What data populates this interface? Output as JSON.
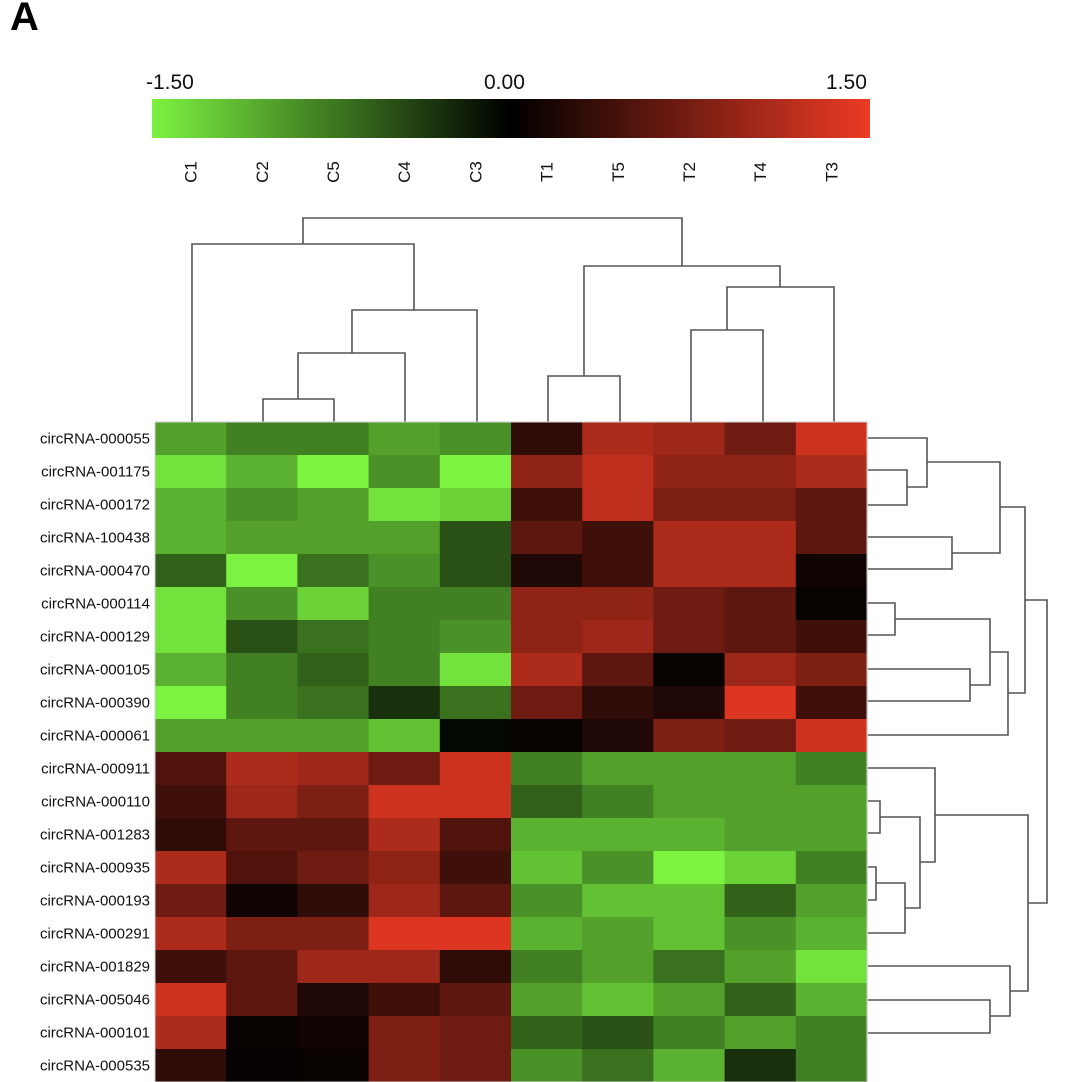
{
  "panel_label": "A",
  "colors": {
    "low": "#7cf241",
    "mid": "#000000",
    "high": "#ec3a24",
    "label_red": "#d94040",
    "label_green": "#66cc33"
  },
  "chart_data": {
    "type": "heatmap",
    "title": "",
    "colorbar": {
      "min": -1.5,
      "max": 1.5,
      "tick_labels": [
        "-1.50",
        "0.00",
        "1.50"
      ]
    },
    "columns": [
      "C1",
      "C2",
      "C5",
      "C4",
      "C3",
      "T1",
      "T5",
      "T2",
      "T4",
      "T3"
    ],
    "rows": [
      {
        "label": "circRNA-000055",
        "highlight": "none"
      },
      {
        "label": "circRNA-001175",
        "highlight": "red"
      },
      {
        "label": "circRNA-000172",
        "highlight": "none"
      },
      {
        "label": "circRNA-100438",
        "highlight": "red"
      },
      {
        "label": "circRNA-000470",
        "highlight": "none"
      },
      {
        "label": "circRNA-000114",
        "highlight": "none"
      },
      {
        "label": "circRNA-000129",
        "highlight": "none"
      },
      {
        "label": "circRNA-000105",
        "highlight": "none"
      },
      {
        "label": "circRNA-000390",
        "highlight": "none"
      },
      {
        "label": "circRNA-000061",
        "highlight": "none"
      },
      {
        "label": "circRNA-000911",
        "highlight": "green"
      },
      {
        "label": "circRNA-000110",
        "highlight": "none"
      },
      {
        "label": "circRNA-001283",
        "highlight": "green"
      },
      {
        "label": "circRNA-000935",
        "highlight": "none"
      },
      {
        "label": "circRNA-000193",
        "highlight": "none"
      },
      {
        "label": "circRNA-000291",
        "highlight": "none"
      },
      {
        "label": "circRNA-001829",
        "highlight": "none"
      },
      {
        "label": "circRNA-005046",
        "highlight": "none"
      },
      {
        "label": "circRNA-000101",
        "highlight": "none"
      },
      {
        "label": "circRNA-000535",
        "highlight": "none"
      }
    ],
    "values": [
      [
        -1.0,
        -0.8,
        -0.8,
        -1.0,
        -0.9,
        0.3,
        1.1,
        1.0,
        0.7,
        1.3
      ],
      [
        -1.4,
        -1.1,
        -1.5,
        -0.9,
        -1.5,
        0.9,
        1.2,
        0.9,
        0.9,
        1.1
      ],
      [
        -1.1,
        -0.9,
        -1.0,
        -1.4,
        -1.3,
        0.4,
        1.2,
        0.8,
        0.8,
        0.6
      ],
      [
        -1.1,
        -1.0,
        -1.0,
        -1.0,
        -0.5,
        0.6,
        0.4,
        1.1,
        1.1,
        0.6
      ],
      [
        -0.6,
        -1.5,
        -0.7,
        -0.9,
        -0.5,
        0.2,
        0.4,
        1.1,
        1.1,
        0.1
      ],
      [
        -1.4,
        -0.9,
        -1.3,
        -0.8,
        -0.8,
        0.9,
        0.9,
        0.7,
        0.6,
        0.05
      ],
      [
        -1.4,
        -0.5,
        -0.7,
        -0.8,
        -0.9,
        0.9,
        1.0,
        0.7,
        0.6,
        0.4
      ],
      [
        -1.1,
        -0.8,
        -0.6,
        -0.8,
        -1.4,
        1.1,
        0.6,
        0.05,
        1.0,
        0.8
      ],
      [
        -1.5,
        -0.8,
        -0.7,
        -0.3,
        -0.7,
        0.7,
        0.3,
        0.2,
        1.4,
        0.4
      ],
      [
        -1.0,
        -1.0,
        -1.0,
        -1.2,
        -0.05,
        0.05,
        0.2,
        0.8,
        0.7,
        1.3
      ],
      [
        0.5,
        1.1,
        1.0,
        0.7,
        1.3,
        -0.8,
        -1.0,
        -1.0,
        -1.0,
        -0.8
      ],
      [
        0.4,
        1.0,
        0.8,
        1.3,
        1.3,
        -0.6,
        -0.8,
        -1.0,
        -1.0,
        -1.0
      ],
      [
        0.3,
        0.6,
        0.6,
        1.1,
        0.5,
        -1.1,
        -1.1,
        -1.1,
        -1.0,
        -1.0
      ],
      [
        1.1,
        0.5,
        0.7,
        0.9,
        0.4,
        -1.2,
        -0.9,
        -1.5,
        -1.3,
        -0.8
      ],
      [
        0.7,
        0.1,
        0.3,
        1.0,
        0.6,
        -0.9,
        -1.2,
        -1.2,
        -0.6,
        -1.0
      ],
      [
        1.1,
        0.8,
        0.8,
        1.4,
        1.4,
        -1.1,
        -1.0,
        -1.2,
        -0.9,
        -1.1
      ],
      [
        0.4,
        0.6,
        1.0,
        1.0,
        0.3,
        -0.8,
        -1.0,
        -0.7,
        -1.0,
        -1.4
      ],
      [
        1.3,
        0.6,
        0.2,
        0.4,
        0.6,
        -1.0,
        -1.2,
        -1.0,
        -0.6,
        -1.1
      ],
      [
        1.1,
        0.05,
        0.1,
        0.8,
        0.7,
        -0.6,
        -0.5,
        -0.8,
        -1.0,
        -0.8
      ],
      [
        0.3,
        0.03,
        0.05,
        0.8,
        0.7,
        -0.9,
        -0.7,
        -1.1,
        -0.3,
        -0.8
      ]
    ]
  }
}
